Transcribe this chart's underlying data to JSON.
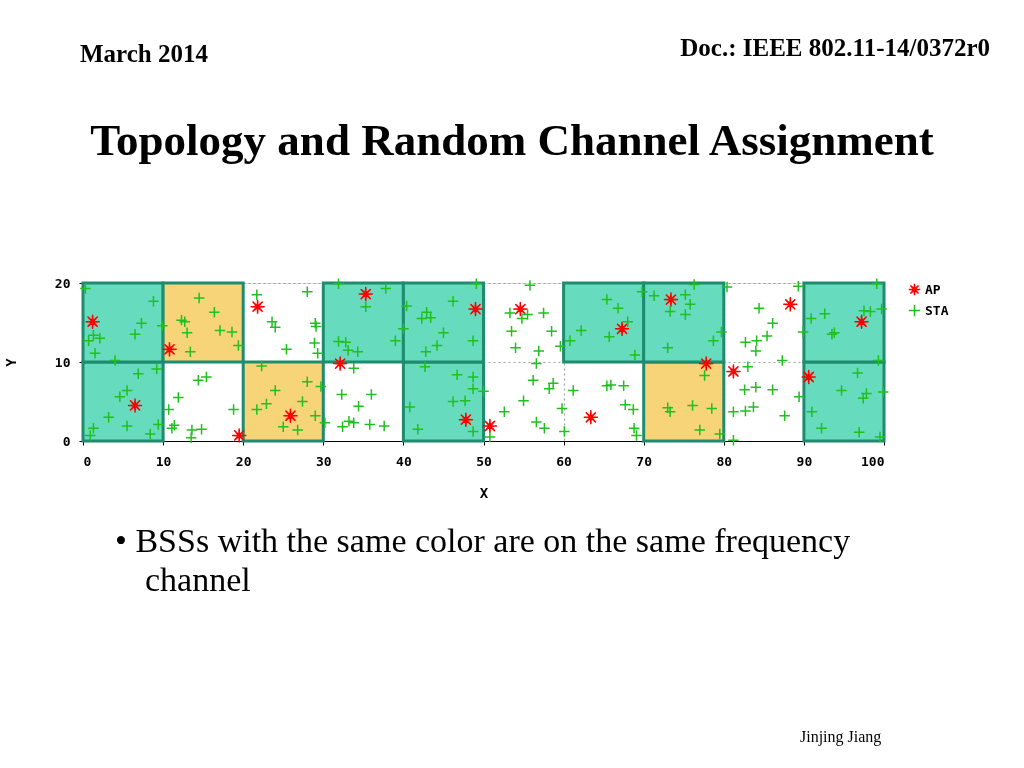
{
  "chart_data": {
    "type": "scatter",
    "title": "Topology and Random Channel Assignment",
    "xlabel": "X",
    "ylabel": "Y",
    "xlim": [
      0,
      100
    ],
    "ylim": [
      0,
      20
    ],
    "xticks": [
      0,
      10,
      20,
      30,
      40,
      50,
      60,
      70,
      80,
      90,
      100
    ],
    "yticks": [
      0,
      10,
      20
    ],
    "grid": true,
    "legend": "right",
    "annotations": [
      "March 2014",
      "Doc.: IEEE 802.11-14/0372r0",
      "• BSSs with the same color are on the same frequency channel",
      "Jinjing Jiang"
    ],
    "series": [
      {
        "type": "bar",
        "line_style": "solid",
        "x": [
          5,
          15,
          25,
          35,
          45,
          55,
          65,
          75,
          85,
          95
        ],
        "base": [
          0,
          null,
          0,
          null,
          0,
          null,
          null,
          0,
          null,
          0
        ],
        "values": [
          10,
          null,
          10,
          null,
          10,
          null,
          null,
          10,
          null,
          10
        ],
        "colors": [
          "#66dbbd",
          null,
          "#f8d478",
          null,
          "#66dbbd",
          null,
          null,
          "#f8d478",
          null,
          "#66dbbd"
        ]
      },
      {
        "type": "bar",
        "line_style": "solid",
        "x": [
          5,
          15,
          25,
          35,
          45,
          55,
          65,
          75,
          85,
          95
        ],
        "base": [
          10,
          10,
          null,
          10,
          10,
          null,
          10,
          10,
          null,
          10
        ],
        "values": [
          10,
          10,
          null,
          10,
          10,
          null,
          10,
          10,
          null,
          10
        ],
        "colors": [
          "#66dbbd",
          "#f8d478",
          null,
          "#66dbbd",
          "#66dbbd",
          null,
          "#66dbbd",
          "#66dbbd",
          null,
          "#66dbbd"
        ]
      },
      {
        "name": "AP",
        "marker": "star",
        "color": "#ff0000",
        "x": [
          1.2,
          6.5,
          10.8,
          19.5,
          21.8,
          25.9,
          35.3,
          32.1,
          49.0,
          47.8,
          54.6,
          50.8,
          67.3,
          63.4,
          73.4,
          77.8,
          81.2,
          88.3,
          97.2,
          90.6
        ],
        "values": [
          15.1,
          4.5,
          11.6,
          0.7,
          17.0,
          3.2,
          18.6,
          9.8,
          16.7,
          2.7,
          16.7,
          1.9,
          14.2,
          3.0,
          17.9,
          9.8,
          8.8,
          17.3,
          15.1,
          8.1
        ]
      },
      {
        "name": "STA",
        "marker": "cross",
        "color": "#1fc01f",
        "x": [
          0.3,
          8.8,
          7.3,
          6.5,
          9.9,
          1.3,
          2.1,
          0.7,
          1.5,
          4.0,
          14.5,
          16.4,
          12.3,
          12.7,
          13.0,
          17.1,
          18.6,
          19.4,
          13.4,
          21.7,
          23.6,
          24.0,
          25.4,
          9.2,
          6.9,
          5.5,
          4.6,
          3.2,
          5.5,
          9.4,
          8.4,
          1.3,
          0.9,
          14.4,
          15.4,
          11.9,
          10.7,
          18.8,
          11.4,
          11.1,
          13.6,
          14.8,
          13.5,
          22.3,
          24.0,
          22.9,
          21.7,
          25.0,
          28.0,
          29.0,
          29.1,
          28.9,
          29.3,
          31.9,
          37.8,
          35.3,
          40.4,
          40.0,
          39.0,
          31.9,
          32.8,
          33.1,
          34.3,
          49.1,
          46.2,
          42.3,
          42.9,
          43.4,
          45.0,
          44.2,
          48.7,
          42.8,
          33.8,
          32.3,
          36.0,
          34.4,
          33.2,
          33.8,
          32.4,
          35.8,
          37.6,
          28.0,
          29.7,
          27.4,
          29.0,
          26.8,
          30.2,
          42.7,
          46.7,
          48.7,
          48.7,
          50.0,
          46.2,
          47.7,
          40.8,
          41.8,
          48.7,
          50.8,
          55.8,
          53.3,
          54.8,
          55.5,
          57.5,
          53.5,
          58.5,
          54.0,
          56.9,
          59.6,
          65.4,
          66.8,
          68.0,
          62.2,
          65.7,
          60.8,
          68.9,
          69.8,
          76.3,
          71.3,
          75.2,
          75.8,
          73.3,
          75.2,
          73.0,
          56.6,
          56.2,
          58.2,
          58.7,
          55.0,
          52.6,
          59.8,
          56.6,
          57.6,
          60.1,
          61.2,
          65.4,
          65.9,
          67.5,
          67.7,
          68.8,
          69.1,
          68.7,
          77.6,
          73.0,
          73.3,
          76.1,
          77.0,
          80.4,
          79.7,
          78.7,
          78.5,
          79.5,
          81.2,
          89.3,
          84.4,
          86.1,
          85.4,
          84.1,
          82.7,
          84.0,
          87.3,
          89.9,
          83.0,
          82.6,
          84.0,
          86.1,
          81.2,
          82.7,
          83.7,
          87.6,
          89.4,
          99.1,
          90.9,
          92.6,
          97.5,
          98.3,
          99.7,
          93.5,
          93.8,
          99.3,
          96.7,
          94.7,
          97.8,
          97.4,
          99.9,
          91.0,
          92.2,
          96.9,
          99.5
        ],
        "values": [
          19.3,
          17.7,
          14.9,
          13.5,
          14.6,
          13.4,
          13.0,
          12.7,
          11.1,
          10.2,
          18.1,
          16.3,
          15.3,
          15.1,
          13.7,
          14.0,
          13.8,
          12.1,
          11.3,
          18.5,
          15.1,
          14.4,
          11.6,
          9.1,
          8.5,
          6.4,
          5.6,
          3.0,
          1.9,
          2.1,
          0.9,
          1.6,
          0.7,
          7.7,
          8.1,
          5.5,
          4.0,
          4.0,
          2.0,
          1.6,
          1.4,
          1.5,
          0.4,
          9.5,
          6.4,
          4.7,
          4.0,
          1.8,
          18.9,
          14.9,
          14.5,
          12.4,
          11.1,
          19.9,
          19.3,
          17.0,
          17.1,
          14.2,
          12.7,
          12.6,
          12.5,
          11.5,
          11.3,
          19.9,
          17.7,
          15.5,
          16.3,
          15.6,
          13.7,
          12.1,
          12.7,
          11.3,
          9.2,
          5.9,
          5.9,
          4.4,
          2.5,
          2.3,
          1.8,
          2.1,
          1.9,
          7.5,
          6.9,
          5.0,
          3.2,
          1.4,
          2.3,
          9.4,
          8.4,
          8.1,
          6.6,
          6.3,
          5.0,
          5.1,
          4.3,
          1.5,
          1.2,
          0.5,
          19.7,
          16.2,
          15.5,
          16.0,
          16.2,
          13.9,
          13.9,
          11.8,
          11.4,
          12.0,
          17.9,
          16.8,
          15.1,
          14.0,
          13.2,
          12.7,
          10.9,
          18.9,
          19.8,
          18.4,
          18.5,
          17.3,
          16.4,
          16.0,
          11.8,
          9.8,
          7.7,
          6.6,
          7.3,
          5.1,
          3.7,
          4.1,
          2.4,
          1.6,
          1.2,
          6.4,
          7.0,
          7.1,
          7.0,
          4.6,
          1.6,
          0.7,
          4.0,
          8.3,
          4.2,
          3.7,
          4.5,
          1.4,
          19.5,
          13.8,
          12.7,
          4.1,
          0.9,
          0.1,
          19.6,
          16.8,
          14.9,
          13.3,
          12.7,
          12.5,
          11.4,
          10.2,
          13.8,
          9.4,
          6.5,
          6.8,
          6.5,
          3.7,
          3.8,
          4.3,
          3.2,
          5.6,
          19.9,
          15.5,
          16.1,
          16.5,
          16.4,
          16.7,
          13.5,
          13.7,
          10.2,
          8.6,
          6.4,
          6.0,
          5.4,
          6.2,
          3.7,
          1.6,
          1.1,
          0.5
        ]
      }
    ]
  }
}
